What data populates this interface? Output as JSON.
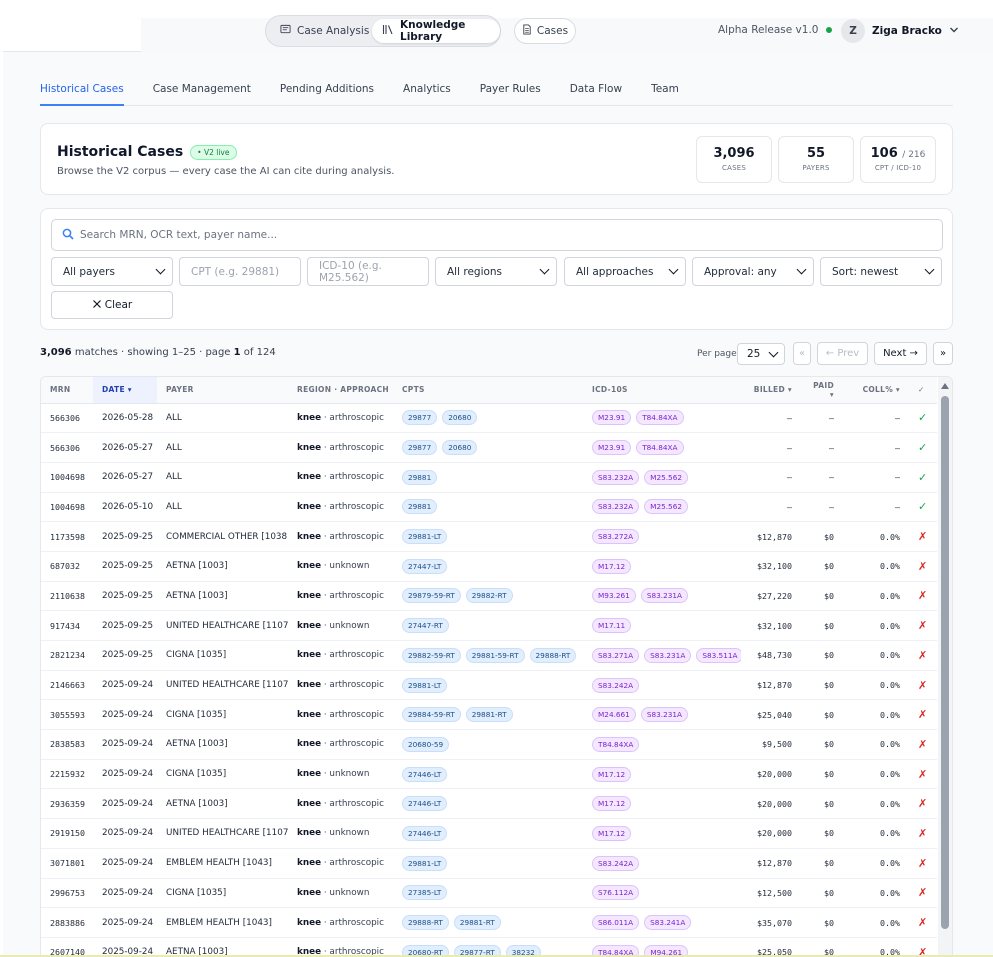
{
  "topbar": {
    "modes": [
      {
        "label": "Case Analysis",
        "icon": "message-square-icon"
      },
      {
        "label": "Knowledge Library",
        "icon": "library-icon"
      }
    ],
    "cases_label": "Cases",
    "release": "Alpha Release v1.0",
    "user_initial": "Z",
    "user_name": "Ziga Bracko"
  },
  "tabs": [
    "Historical Cases",
    "Case Management",
    "Pending Additions",
    "Analytics",
    "Payer Rules",
    "Data Flow",
    "Team"
  ],
  "hero": {
    "title": "Historical Cases",
    "badge": "• V2 live",
    "subtitle": "Browse the V2 corpus — every case the AI can cite during analysis.",
    "stats": [
      {
        "value": "3,096",
        "suffix": "",
        "label": "CASES"
      },
      {
        "value": "55",
        "suffix": "",
        "label": "PAYERS"
      },
      {
        "value": "106",
        "suffix": "/ 216",
        "label": "CPT / ICD-10"
      }
    ]
  },
  "filters": {
    "search_placeholder": "Search MRN, OCR text, payer name...",
    "payer": "All payers",
    "cpt_placeholder": "CPT (e.g. 29881)",
    "icd_placeholder": "ICD-10 (e.g. M25.562)",
    "region": "All regions",
    "approach": "All approaches",
    "approval": "Approval: any",
    "sort": "Sort: newest",
    "clear_label": "Clear"
  },
  "summary": {
    "matches": "3,096",
    "matches_text": "matches · showing 1–25 · page",
    "page": "1",
    "of_text": "of 124"
  },
  "pagination": {
    "per_page_label": "Per page",
    "per_page": "25",
    "first": "«",
    "prev": "← Prev",
    "next": "Next →",
    "last": "»"
  },
  "table": {
    "columns": [
      "MRN",
      "DATE ▾",
      "PAYER",
      "REGION · APPROACH",
      "CPTS",
      "ICD-10S",
      "BILLED ▾",
      "PAID ▾",
      "COLL% ▾",
      "✓"
    ],
    "rows": [
      {
        "mrn": "566306",
        "date": "2026-05-28",
        "payer": "ALL",
        "region": "knee",
        "approach": " · arthroscopic",
        "cpts": [
          "29877",
          "20680"
        ],
        "icds": [
          "M23.91",
          "T84.84XA"
        ],
        "billed": "–",
        "paid": "–",
        "coll": "–",
        "ok": true
      },
      {
        "mrn": "566306",
        "date": "2026-05-27",
        "payer": "ALL",
        "region": "knee",
        "approach": " · arthroscopic",
        "cpts": [
          "29877",
          "20680"
        ],
        "icds": [
          "M23.91",
          "T84.84XA"
        ],
        "billed": "–",
        "paid": "–",
        "coll": "–",
        "ok": true
      },
      {
        "mrn": "1004698",
        "date": "2026-05-27",
        "payer": "ALL",
        "region": "knee",
        "approach": " · arthroscopic",
        "cpts": [
          "29881"
        ],
        "icds": [
          "S83.232A",
          "M25.562"
        ],
        "billed": "–",
        "paid": "–",
        "coll": "–",
        "ok": true
      },
      {
        "mrn": "1004698",
        "date": "2026-05-10",
        "payer": "ALL",
        "region": "knee",
        "approach": " · arthroscopic",
        "cpts": [
          "29881"
        ],
        "icds": [
          "S83.232A",
          "M25.562"
        ],
        "billed": "–",
        "paid": "–",
        "coll": "–",
        "ok": true
      },
      {
        "mrn": "1173598",
        "date": "2025-09-25",
        "payer": "COMMERCIAL OTHER [1038]",
        "region": "knee",
        "approach": " · arthroscopic",
        "cpts": [
          "29881-LT"
        ],
        "icds": [
          "S83.272A"
        ],
        "billed": "$12,870",
        "paid": "$0",
        "coll": "0.0%",
        "ok": false
      },
      {
        "mrn": "687032",
        "date": "2025-09-25",
        "payer": "AETNA [1003]",
        "region": "knee",
        "approach": " · unknown",
        "cpts": [
          "27447-LT"
        ],
        "icds": [
          "M17.12"
        ],
        "billed": "$32,100",
        "paid": "$0",
        "coll": "0.0%",
        "ok": false
      },
      {
        "mrn": "2110638",
        "date": "2025-09-25",
        "payer": "AETNA [1003]",
        "region": "knee",
        "approach": " · arthroscopic",
        "cpts": [
          "29879-59-RT",
          "29882-RT"
        ],
        "icds": [
          "M93.261",
          "S83.231A"
        ],
        "billed": "$27,220",
        "paid": "$0",
        "coll": "0.0%",
        "ok": false
      },
      {
        "mrn": "917434",
        "date": "2025-09-25",
        "payer": "UNITED HEALTHCARE [1107]",
        "region": "knee",
        "approach": " · unknown",
        "cpts": [
          "27447-RT"
        ],
        "icds": [
          "M17.11"
        ],
        "billed": "$32,100",
        "paid": "$0",
        "coll": "0.0%",
        "ok": false
      },
      {
        "mrn": "2821234",
        "date": "2025-09-25",
        "payer": "CIGNA [1035]",
        "region": "knee",
        "approach": " · arthroscopic",
        "cpts": [
          "29882-59-RT",
          "29881-59-RT",
          "29888-RT"
        ],
        "icds": [
          "S83.271A",
          "S83.231A",
          "S83.511A"
        ],
        "billed": "$48,730",
        "paid": "$0",
        "coll": "0.0%",
        "ok": false
      },
      {
        "mrn": "2146663",
        "date": "2025-09-24",
        "payer": "UNITED HEALTHCARE [1107]",
        "region": "knee",
        "approach": " · arthroscopic",
        "cpts": [
          "29881-LT"
        ],
        "icds": [
          "S83.242A"
        ],
        "billed": "$12,870",
        "paid": "$0",
        "coll": "0.0%",
        "ok": false
      },
      {
        "mrn": "3055593",
        "date": "2025-09-24",
        "payer": "CIGNA [1035]",
        "region": "knee",
        "approach": " · arthroscopic",
        "cpts": [
          "29884-59-RT",
          "29881-RT"
        ],
        "icds": [
          "M24.661",
          "S83.231A"
        ],
        "billed": "$25,040",
        "paid": "$0",
        "coll": "0.0%",
        "ok": false
      },
      {
        "mrn": "2838583",
        "date": "2025-09-24",
        "payer": "AETNA [1003]",
        "region": "knee",
        "approach": " · arthroscopic",
        "cpts": [
          "20680-59"
        ],
        "icds": [
          "T84.84XA"
        ],
        "billed": "$9,500",
        "paid": "$0",
        "coll": "0.0%",
        "ok": false
      },
      {
        "mrn": "2215932",
        "date": "2025-09-24",
        "payer": "CIGNA [1035]",
        "region": "knee",
        "approach": " · unknown",
        "cpts": [
          "27446-LT"
        ],
        "icds": [
          "M17.12"
        ],
        "billed": "$20,000",
        "paid": "$0",
        "coll": "0.0%",
        "ok": false
      },
      {
        "mrn": "2936359",
        "date": "2025-09-24",
        "payer": "AETNA [1003]",
        "region": "knee",
        "approach": " · arthroscopic",
        "cpts": [
          "27446-LT"
        ],
        "icds": [
          "M17.12"
        ],
        "billed": "$20,000",
        "paid": "$0",
        "coll": "0.0%",
        "ok": false
      },
      {
        "mrn": "2919150",
        "date": "2025-09-24",
        "payer": "UNITED HEALTHCARE [1107]",
        "region": "knee",
        "approach": " · unknown",
        "cpts": [
          "27446-LT"
        ],
        "icds": [
          "M17.12"
        ],
        "billed": "$20,000",
        "paid": "$0",
        "coll": "0.0%",
        "ok": false
      },
      {
        "mrn": "3071801",
        "date": "2025-09-24",
        "payer": "EMBLEM HEALTH [1043]",
        "region": "knee",
        "approach": " · arthroscopic",
        "cpts": [
          "29881-LT"
        ],
        "icds": [
          "S83.242A"
        ],
        "billed": "$12,870",
        "paid": "$0",
        "coll": "0.0%",
        "ok": false
      },
      {
        "mrn": "2996753",
        "date": "2025-09-24",
        "payer": "CIGNA [1035]",
        "region": "knee",
        "approach": " · unknown",
        "cpts": [
          "27385-LT"
        ],
        "icds": [
          "S76.112A"
        ],
        "billed": "$12,500",
        "paid": "$0",
        "coll": "0.0%",
        "ok": false
      },
      {
        "mrn": "2883886",
        "date": "2025-09-24",
        "payer": "EMBLEM HEALTH [1043]",
        "region": "knee",
        "approach": " · arthroscopic",
        "cpts": [
          "29888-RT",
          "29881-RT"
        ],
        "icds": [
          "S86.011A",
          "S83.241A"
        ],
        "billed": "$35,070",
        "paid": "$0",
        "coll": "0.0%",
        "ok": false
      },
      {
        "mrn": "2607140",
        "date": "2025-09-24",
        "payer": "AETNA [1003]",
        "region": "knee",
        "approach": " · arthroscopic",
        "cpts": [
          "20680-RT",
          "29877-RT",
          "38232"
        ],
        "icds": [
          "T84.84XA",
          "M94.261"
        ],
        "billed": "$25,050",
        "paid": "$0",
        "coll": "0.0%",
        "ok": false
      }
    ],
    "check_mark": "✓",
    "x_mark": "✗"
  },
  "colors": {
    "accent": "#2563eb",
    "ok": "#16a34a",
    "fail": "#dc2626",
    "cpt_chip": "#e0eefd",
    "icd_chip": "#f3e8ff"
  }
}
